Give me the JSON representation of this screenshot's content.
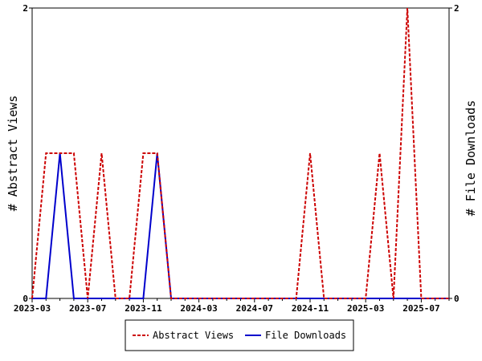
{
  "chart_data": {
    "type": "line",
    "ylabel_left": "# Abstract Views",
    "ylabel_right": "# File Downloads",
    "ylim_left": [
      0,
      2
    ],
    "ylim_right": [
      0,
      2
    ],
    "y_ticks_left": [
      "0",
      "2"
    ],
    "y_ticks_right": [
      "0",
      "2"
    ],
    "x_ticks": [
      "2023-03",
      "2023-07",
      "2023-11",
      "2024-03",
      "2024-07",
      "2024-11",
      "2025-03",
      "2025-07"
    ],
    "x": [
      "2023-03",
      "2023-04",
      "2023-05",
      "2023-06",
      "2023-07",
      "2023-08",
      "2023-09",
      "2023-10",
      "2023-11",
      "2023-12",
      "2024-01",
      "2024-02",
      "2024-03",
      "2024-04",
      "2024-05",
      "2024-06",
      "2024-07",
      "2024-08",
      "2024-09",
      "2024-10",
      "2024-11",
      "2024-12",
      "2025-01",
      "2025-02",
      "2025-03",
      "2025-04",
      "2025-05",
      "2025-06",
      "2025-07",
      "2025-08",
      "2025-09"
    ],
    "series": [
      {
        "name": "Abstract Views",
        "color": "#cc0000",
        "style": "dashed",
        "axis": "left",
        "values": [
          0,
          1,
          1,
          1,
          0,
          1,
          0,
          0,
          1,
          1,
          0,
          0,
          0,
          0,
          0,
          0,
          0,
          0,
          0,
          0,
          1,
          0,
          0,
          0,
          0,
          1,
          0,
          2,
          0,
          0,
          0
        ]
      },
      {
        "name": "File Downloads",
        "color": "#0000cc",
        "style": "solid",
        "axis": "right",
        "values": [
          0,
          0,
          1,
          0,
          0,
          0,
          0,
          0,
          0,
          1,
          0,
          0,
          0,
          0,
          0,
          0,
          0,
          0,
          0,
          0,
          0,
          0,
          0,
          0,
          0,
          0,
          0,
          0,
          0,
          0,
          0
        ]
      }
    ],
    "legend_placement": "bottom-center",
    "grid": false
  }
}
